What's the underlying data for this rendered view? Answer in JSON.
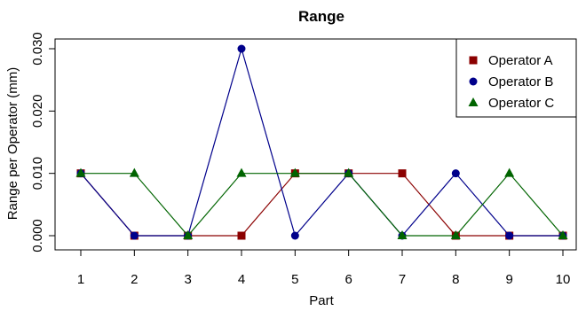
{
  "chart_data": {
    "type": "line",
    "title": "Range",
    "xlabel": "Part",
    "ylabel": "Range per Operator (mm)",
    "categories": [
      "1",
      "2",
      "3",
      "4",
      "5",
      "6",
      "7",
      "8",
      "9",
      "10"
    ],
    "x": [
      1,
      2,
      3,
      4,
      5,
      6,
      7,
      8,
      9,
      10
    ],
    "xlim": [
      1,
      10
    ],
    "ylim": [
      0,
      0.03
    ],
    "yticks": [
      0.0,
      0.01,
      0.02,
      0.03
    ],
    "ytick_labels": [
      "0.000",
      "0.010",
      "0.020",
      "0.030"
    ],
    "grid": false,
    "legend_position": "top-right",
    "series": [
      {
        "name": "Operator A",
        "color": "#8b0000",
        "marker": "square",
        "values": [
          0.01,
          0.0,
          0.0,
          0.0,
          0.01,
          0.01,
          0.01,
          0.0,
          0.0,
          0.0
        ]
      },
      {
        "name": "Operator B",
        "color": "#00008b",
        "marker": "circle",
        "values": [
          0.01,
          0.0,
          0.0,
          0.03,
          0.0,
          0.01,
          0.0,
          0.01,
          0.0,
          0.0
        ]
      },
      {
        "name": "Operator C",
        "color": "#006400",
        "marker": "triangle",
        "values": [
          0.01,
          0.01,
          0.0,
          0.01,
          0.01,
          0.01,
          0.0,
          0.0,
          0.01,
          0.0
        ]
      }
    ]
  }
}
